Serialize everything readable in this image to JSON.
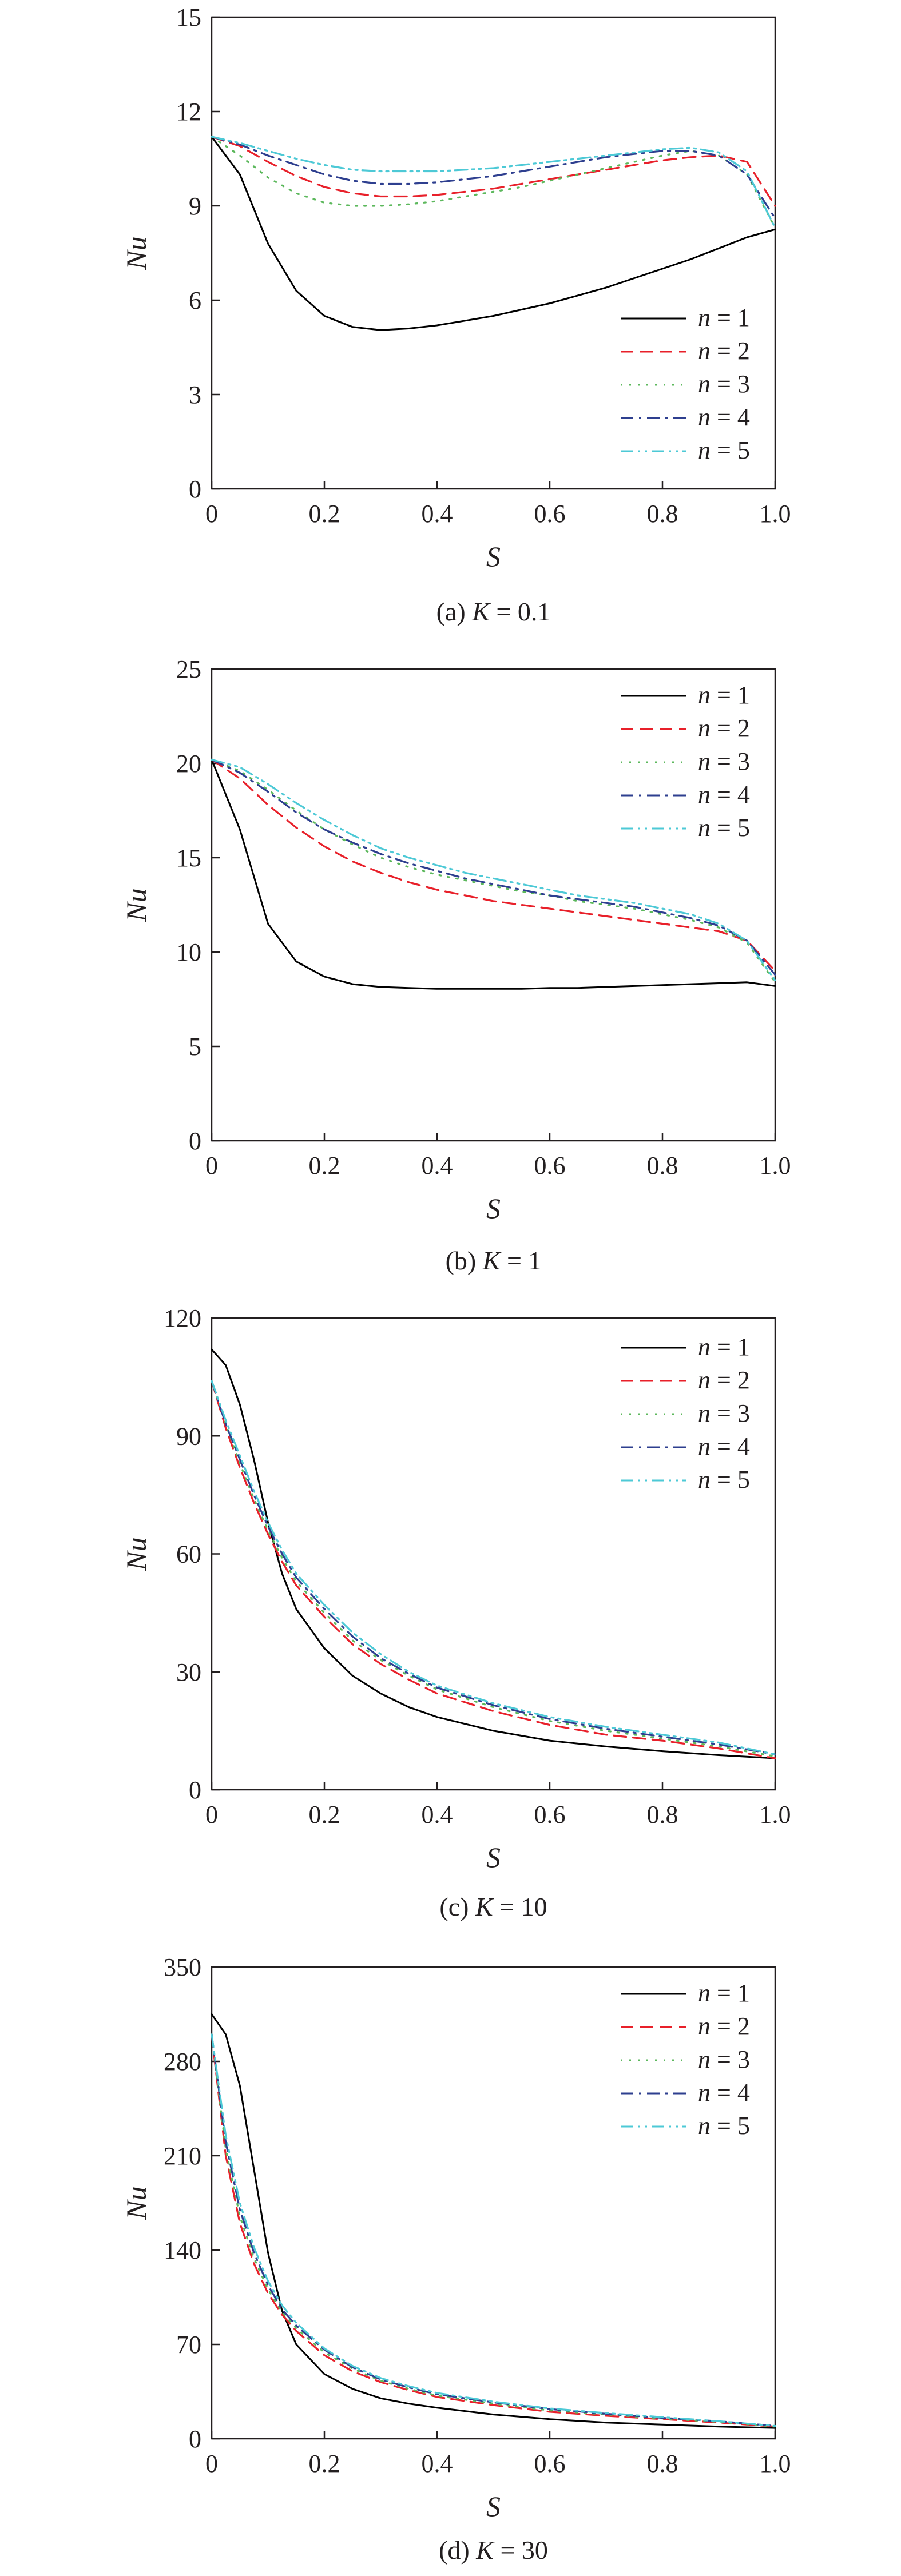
{
  "figure": {
    "panels": [
      {
        "caption": "(a) K = 0.1",
        "caption_prefix": "(a) ",
        "caption_var": "K",
        "caption_value": " = 0.1",
        "xlabel": "S",
        "ylabel": "Nu",
        "xticks": [
          "0",
          "0.2",
          "0.4",
          "0.6",
          "0.8",
          "1.0"
        ],
        "yticks": [
          "0",
          "3",
          "6",
          "9",
          "12",
          "15"
        ],
        "legend_position": "bottom-right"
      },
      {
        "caption": "(b) K = 1",
        "caption_prefix": "(b) ",
        "caption_var": "K",
        "caption_value": " = 1",
        "xlabel": "S",
        "ylabel": "Nu",
        "xticks": [
          "0",
          "0.2",
          "0.4",
          "0.6",
          "0.8",
          "1.0"
        ],
        "yticks": [
          "0",
          "5",
          "10",
          "15",
          "20",
          "25"
        ],
        "legend_position": "top-right"
      },
      {
        "caption": "(c) K = 10",
        "caption_prefix": "(c) ",
        "caption_var": "K",
        "caption_value": " = 10",
        "xlabel": "S",
        "ylabel": "Nu",
        "xticks": [
          "0",
          "0.2",
          "0.4",
          "0.6",
          "0.8",
          "1.0"
        ],
        "yticks": [
          "0",
          "30",
          "60",
          "90",
          "120"
        ],
        "legend_position": "top-right"
      },
      {
        "caption": "(d) K = 30",
        "caption_prefix": "(d) ",
        "caption_var": "K",
        "caption_value": " = 30",
        "xlabel": "S",
        "ylabel": "Nu",
        "xticks": [
          "0",
          "0.2",
          "0.4",
          "0.6",
          "0.8",
          "1.0"
        ],
        "yticks": [
          "0",
          "70",
          "140",
          "210",
          "280",
          "350"
        ],
        "legend_position": "top-right"
      }
    ]
  },
  "chart_data": [
    {
      "type": "line",
      "title": "(a) K = 0.1",
      "xlabel": "S",
      "ylabel": "Nu",
      "xlim": [
        0,
        1
      ],
      "ylim": [
        0,
        15
      ],
      "x": [
        0,
        0.05,
        0.1,
        0.15,
        0.2,
        0.25,
        0.3,
        0.35,
        0.4,
        0.45,
        0.5,
        0.55,
        0.6,
        0.65,
        0.7,
        0.75,
        0.8,
        0.85,
        0.9,
        0.95,
        1.0
      ],
      "series": [
        {
          "name": "n = 1",
          "color": "#000000",
          "dash": "solid",
          "values": [
            11.2,
            10.0,
            7.8,
            6.3,
            5.5,
            5.15,
            5.05,
            5.1,
            5.2,
            5.35,
            5.5,
            5.7,
            5.9,
            6.15,
            6.4,
            6.7,
            7.0,
            7.3,
            7.65,
            8.0,
            8.25
          ]
        },
        {
          "name": "n = 2",
          "color": "#e8202a",
          "dash": "dash",
          "values": [
            11.2,
            10.9,
            10.4,
            9.95,
            9.6,
            9.4,
            9.3,
            9.3,
            9.35,
            9.45,
            9.55,
            9.7,
            9.85,
            10.0,
            10.15,
            10.3,
            10.45,
            10.55,
            10.6,
            10.4,
            9.0
          ]
        },
        {
          "name": "n = 3",
          "color": "#5cb85c",
          "dash": "dot",
          "values": [
            11.2,
            10.6,
            9.9,
            9.4,
            9.1,
            9.0,
            9.0,
            9.05,
            9.15,
            9.3,
            9.45,
            9.6,
            9.8,
            10.0,
            10.2,
            10.4,
            10.6,
            10.75,
            10.6,
            10.0,
            8.3
          ]
        },
        {
          "name": "n = 4",
          "color": "#2e3f8f",
          "dash": "dashdot",
          "values": [
            11.2,
            10.95,
            10.6,
            10.3,
            10.0,
            9.8,
            9.7,
            9.7,
            9.75,
            9.85,
            9.95,
            10.1,
            10.25,
            10.4,
            10.55,
            10.65,
            10.75,
            10.75,
            10.6,
            10.0,
            8.6
          ]
        },
        {
          "name": "n = 5",
          "color": "#4dc9d6",
          "dash": "dashdotdot",
          "values": [
            11.2,
            11.0,
            10.75,
            10.5,
            10.3,
            10.15,
            10.1,
            10.1,
            10.1,
            10.15,
            10.2,
            10.3,
            10.4,
            10.5,
            10.6,
            10.7,
            10.8,
            10.85,
            10.7,
            10.1,
            8.3
          ]
        }
      ]
    },
    {
      "type": "line",
      "title": "(b) K = 1",
      "xlabel": "S",
      "ylabel": "Nu",
      "xlim": [
        0,
        1
      ],
      "ylim": [
        0,
        25
      ],
      "x": [
        0,
        0.05,
        0.1,
        0.15,
        0.2,
        0.25,
        0.3,
        0.35,
        0.4,
        0.45,
        0.5,
        0.55,
        0.6,
        0.65,
        0.7,
        0.75,
        0.8,
        0.85,
        0.9,
        0.95,
        1.0
      ],
      "series": [
        {
          "name": "n = 1",
          "color": "#000000",
          "dash": "solid",
          "values": [
            20.2,
            16.5,
            11.5,
            9.5,
            8.7,
            8.3,
            8.15,
            8.1,
            8.05,
            8.05,
            8.05,
            8.05,
            8.1,
            8.1,
            8.15,
            8.2,
            8.25,
            8.3,
            8.35,
            8.4,
            8.2
          ]
        },
        {
          "name": "n = 2",
          "color": "#e8202a",
          "dash": "dash",
          "values": [
            20.2,
            19.2,
            17.8,
            16.6,
            15.6,
            14.8,
            14.2,
            13.7,
            13.3,
            13.0,
            12.7,
            12.5,
            12.3,
            12.1,
            11.9,
            11.7,
            11.5,
            11.3,
            11.1,
            10.6,
            9.0
          ]
        },
        {
          "name": "n = 3",
          "color": "#5cb85c",
          "dash": "dot",
          "values": [
            20.2,
            19.6,
            18.6,
            17.5,
            16.5,
            15.7,
            15.0,
            14.5,
            14.1,
            13.8,
            13.5,
            13.2,
            13.0,
            12.7,
            12.5,
            12.3,
            12.0,
            11.7,
            11.3,
            10.5,
            8.4
          ]
        },
        {
          "name": "n = 4",
          "color": "#2e3f8f",
          "dash": "dashdot",
          "values": [
            20.2,
            19.5,
            18.5,
            17.4,
            16.5,
            15.8,
            15.2,
            14.7,
            14.3,
            13.9,
            13.6,
            13.3,
            13.0,
            12.8,
            12.6,
            12.4,
            12.1,
            11.8,
            11.4,
            10.6,
            8.8
          ]
        },
        {
          "name": "n = 5",
          "color": "#4dc9d6",
          "dash": "dashdotdot",
          "values": [
            20.2,
            19.8,
            18.9,
            17.9,
            17.0,
            16.2,
            15.5,
            15.0,
            14.6,
            14.2,
            13.9,
            13.6,
            13.3,
            13.0,
            12.8,
            12.6,
            12.3,
            12.0,
            11.5,
            10.6,
            8.5
          ]
        }
      ]
    },
    {
      "type": "line",
      "title": "(c) K = 10",
      "xlabel": "S",
      "ylabel": "Nu",
      "xlim": [
        0,
        1
      ],
      "ylim": [
        0,
        120
      ],
      "x": [
        0,
        0.025,
        0.05,
        0.075,
        0.1,
        0.125,
        0.15,
        0.2,
        0.25,
        0.3,
        0.35,
        0.4,
        0.5,
        0.6,
        0.7,
        0.8,
        0.9,
        1.0
      ],
      "series": [
        {
          "name": "n = 1",
          "color": "#000000",
          "dash": "solid",
          "values": [
            112,
            108,
            98,
            84,
            68,
            55,
            46,
            36,
            29,
            24.5,
            21,
            18.5,
            15,
            12.5,
            11,
            9.8,
            8.8,
            8
          ]
        },
        {
          "name": "n = 2",
          "color": "#e8202a",
          "dash": "dash",
          "values": [
            104,
            92,
            82,
            73,
            65,
            58,
            52,
            44,
            37,
            32,
            28,
            24.5,
            20,
            16.5,
            14,
            12.5,
            10.5,
            8
          ]
        },
        {
          "name": "n = 3",
          "color": "#5cb85c",
          "dash": "dot",
          "values": [
            104,
            93,
            83,
            74,
            66,
            59,
            53,
            45,
            38,
            33,
            29,
            25.5,
            21,
            17.5,
            15,
            13,
            11,
            8.5
          ]
        },
        {
          "name": "n = 4",
          "color": "#2e3f8f",
          "dash": "dashdot",
          "values": [
            104,
            93,
            84,
            75,
            67,
            60,
            54,
            46,
            39,
            33.5,
            29.5,
            26,
            21.5,
            18,
            15.5,
            13.5,
            11.5,
            9
          ]
        },
        {
          "name": "n = 5",
          "color": "#4dc9d6",
          "dash": "dashdotdot",
          "values": [
            104,
            94,
            85,
            76,
            68,
            61,
            55,
            47,
            40,
            34.5,
            30,
            26.5,
            22,
            18.5,
            16,
            14,
            12,
            9
          ]
        }
      ]
    },
    {
      "type": "line",
      "title": "(d) K = 30",
      "xlabel": "S",
      "ylabel": "Nu",
      "xlim": [
        0,
        1
      ],
      "ylim": [
        0,
        350
      ],
      "x": [
        0,
        0.025,
        0.05,
        0.075,
        0.1,
        0.125,
        0.15,
        0.2,
        0.25,
        0.3,
        0.35,
        0.4,
        0.5,
        0.6,
        0.7,
        0.8,
        0.9,
        1.0
      ],
      "series": [
        {
          "name": "n = 1",
          "color": "#000000",
          "dash": "solid",
          "values": [
            315,
            300,
            262,
            200,
            138,
            95,
            70,
            48,
            37,
            30,
            26,
            23,
            18,
            14.5,
            12,
            10.5,
            9,
            8
          ]
        },
        {
          "name": "n = 2",
          "color": "#e8202a",
          "dash": "dash",
          "values": [
            300,
            210,
            160,
            130,
            108,
            92,
            80,
            62,
            50,
            42,
            36,
            31,
            25,
            20,
            17,
            14.5,
            12,
            9
          ]
        },
        {
          "name": "n = 3",
          "color": "#5cb85c",
          "dash": "dot",
          "values": [
            300,
            215,
            165,
            134,
            111,
            94,
            82,
            64,
            52,
            43,
            37,
            32,
            26,
            21,
            18,
            15,
            12.5,
            9
          ]
        },
        {
          "name": "n = 4",
          "color": "#2e3f8f",
          "dash": "dashdot",
          "values": [
            300,
            220,
            170,
            138,
            114,
            96,
            84,
            66,
            53,
            44,
            38,
            33,
            27,
            22,
            18.5,
            15.5,
            13,
            9.5
          ]
        },
        {
          "name": "n = 5",
          "color": "#4dc9d6",
          "dash": "dashdotdot",
          "values": [
            300,
            225,
            175,
            142,
            117,
            99,
            86,
            67,
            54,
            45,
            39,
            34,
            27.5,
            22.5,
            19,
            16,
            13,
            9.5
          ]
        }
      ]
    }
  ]
}
